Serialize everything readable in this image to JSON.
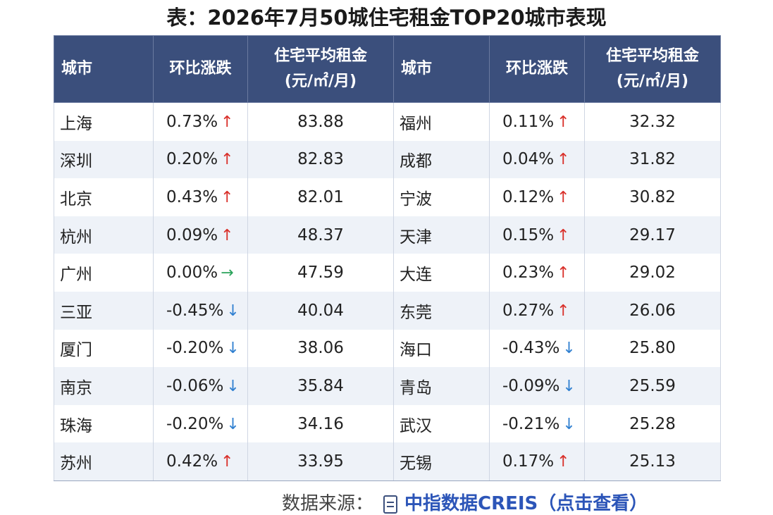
{
  "title": "表：2026年7月50城住宅租金TOP20城市表现",
  "headers": {
    "city": "城市",
    "change": "环比涨跌",
    "rent_line1": "住宅平均租金",
    "rent_line2": "(元/㎡/月)"
  },
  "colors": {
    "header_bg": "#3b4f7c",
    "up": "#d9302a",
    "down": "#2f7fd0",
    "flat": "#2aa35a"
  },
  "left": [
    {
      "city": "上海",
      "change": "0.73%",
      "trend": "up",
      "rent": "83.88"
    },
    {
      "city": "深圳",
      "change": "0.20%",
      "trend": "up",
      "rent": "82.83"
    },
    {
      "city": "北京",
      "change": "0.43%",
      "trend": "up",
      "rent": "82.01"
    },
    {
      "city": "杭州",
      "change": "0.09%",
      "trend": "up",
      "rent": "48.37"
    },
    {
      "city": "广州",
      "change": "0.00%",
      "trend": "flat",
      "rent": "47.59"
    },
    {
      "city": "三亚",
      "change": "-0.45%",
      "trend": "down",
      "rent": "40.04"
    },
    {
      "city": "厦门",
      "change": "-0.20%",
      "trend": "down",
      "rent": "38.06"
    },
    {
      "city": "南京",
      "change": "-0.06%",
      "trend": "down",
      "rent": "35.84"
    },
    {
      "city": "珠海",
      "change": "-0.20%",
      "trend": "down",
      "rent": "34.16"
    },
    {
      "city": "苏州",
      "change": "0.42%",
      "trend": "up",
      "rent": "33.95"
    }
  ],
  "right": [
    {
      "city": "福州",
      "change": "0.11%",
      "trend": "up",
      "rent": "32.32"
    },
    {
      "city": "成都",
      "change": "0.04%",
      "trend": "up",
      "rent": "31.82"
    },
    {
      "city": "宁波",
      "change": "0.12%",
      "trend": "up",
      "rent": "30.82"
    },
    {
      "city": "天津",
      "change": "0.15%",
      "trend": "up",
      "rent": "29.17"
    },
    {
      "city": "大连",
      "change": "0.23%",
      "trend": "up",
      "rent": "29.02"
    },
    {
      "city": "东莞",
      "change": "0.27%",
      "trend": "up",
      "rent": "26.06"
    },
    {
      "city": "海口",
      "change": "-0.43%",
      "trend": "down",
      "rent": "25.80"
    },
    {
      "city": "青岛",
      "change": "-0.09%",
      "trend": "down",
      "rent": "25.59"
    },
    {
      "city": "武汉",
      "change": "-0.21%",
      "trend": "down",
      "rent": "25.28"
    },
    {
      "city": "无锡",
      "change": "0.17%",
      "trend": "up",
      "rent": "25.13"
    }
  ],
  "source": {
    "label": "数据来源：",
    "link_text": "中指数据CREIS（点击查看）",
    "icon": "document-icon"
  }
}
